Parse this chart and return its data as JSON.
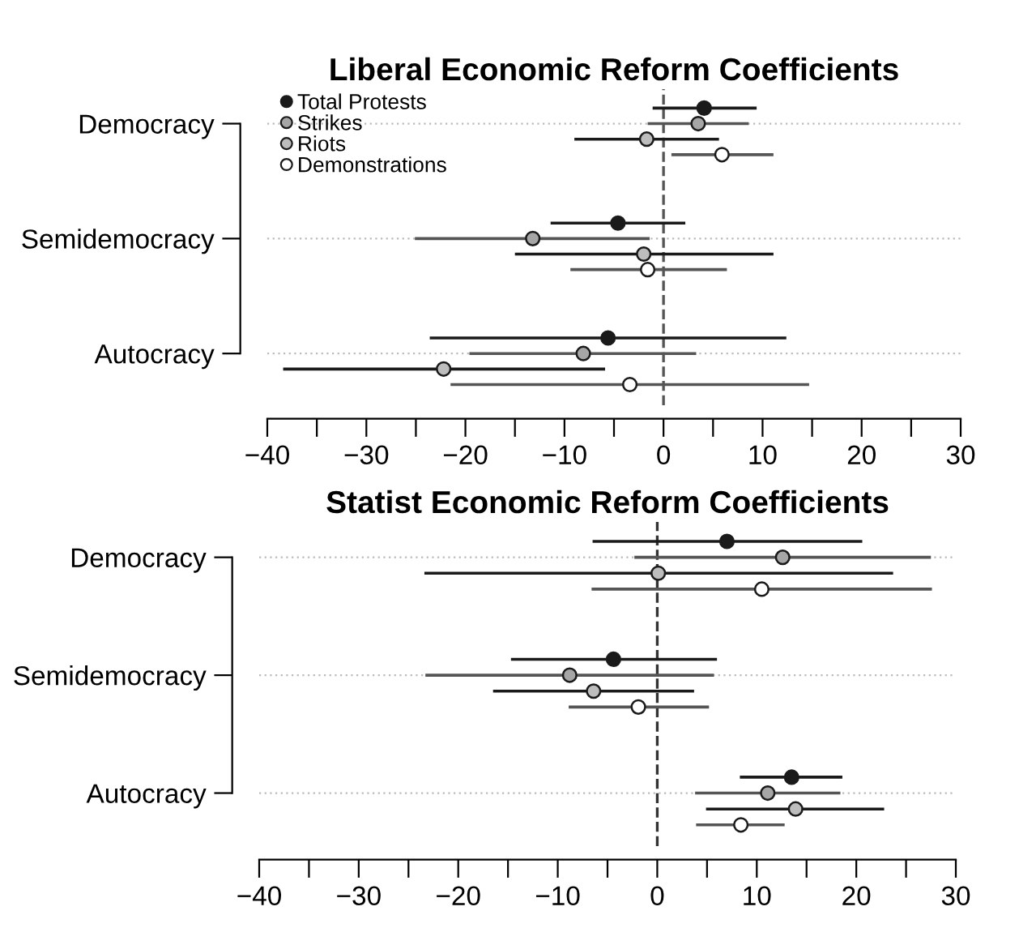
{
  "chart_data": [
    {
      "type": "scatter",
      "orientation": "horizontal",
      "title": "Liberal Economic Reform Coefficients",
      "categories": [
        "Democracy",
        "Semidemocracy",
        "Autocracy"
      ],
      "xlim": [
        -40,
        30
      ],
      "xticks": [
        {
          "value": -40,
          "label": "−40"
        },
        {
          "value": -35,
          "label": null
        },
        {
          "value": -30,
          "label": "−30"
        },
        {
          "value": -25,
          "label": null
        },
        {
          "value": -20,
          "label": "−20"
        },
        {
          "value": -15,
          "label": null
        },
        {
          "value": -10,
          "label": "−10"
        },
        {
          "value": -5,
          "label": null
        },
        0,
        {
          "value": 5,
          "label": null
        },
        10,
        {
          "value": 15,
          "label": null
        },
        20,
        {
          "value": 25,
          "label": null
        },
        30
      ],
      "grid": "y",
      "legend": "top left",
      "marker": "circle",
      "ref_lines": [
        {
          "axis": "x",
          "value": 0,
          "line_style": "dashed",
          "color": "#555555"
        }
      ],
      "series": [
        {
          "name": "Total Protests",
          "color": "#1a1a1a",
          "values": [
            4.1,
            -4.6,
            -5.6
          ],
          "errors": [
            [
              -1.1,
              9.4
            ],
            [
              -11.4,
              2.2
            ],
            [
              -23.6,
              12.4
            ]
          ]
        },
        {
          "name": "Strikes",
          "color": "#a6a6a6",
          "values": [
            3.5,
            -13.2,
            -8.1
          ],
          "errors": [
            [
              -1.6,
              8.6
            ],
            [
              -25.1,
              -1.4
            ],
            [
              -19.6,
              3.3
            ]
          ]
        },
        {
          "name": "Riots",
          "color": "#bdbdbd",
          "values": [
            -1.7,
            -2.0,
            -22.2
          ],
          "errors": [
            [
              -9.0,
              5.6
            ],
            [
              -15.0,
              11.1
            ],
            [
              -38.4,
              -5.9
            ]
          ]
        },
        {
          "name": "Demonstrations",
          "color": "#ffffff",
          "values": [
            5.9,
            -1.6,
            -3.4
          ],
          "errors": [
            [
              0.8,
              11.1
            ],
            [
              -9.4,
              6.4
            ],
            [
              -21.5,
              14.7
            ]
          ]
        }
      ]
    },
    {
      "type": "scatter",
      "orientation": "horizontal",
      "title": "Statist Economic Reform Coefficients",
      "categories": [
        "Democracy",
        "Semidemocracy",
        "Autocracy"
      ],
      "xlim": [
        -40,
        30
      ],
      "xticks": [
        {
          "value": -40,
          "label": "−40"
        },
        {
          "value": -35,
          "label": null
        },
        {
          "value": -30,
          "label": "−30"
        },
        {
          "value": -25,
          "label": null
        },
        {
          "value": -20,
          "label": "−20"
        },
        {
          "value": -15,
          "label": null
        },
        {
          "value": -10,
          "label": "−10"
        },
        {
          "value": -5,
          "label": null
        },
        0,
        {
          "value": 5,
          "label": null
        },
        10,
        {
          "value": 15,
          "label": null
        },
        20,
        {
          "value": 25,
          "label": null
        },
        30
      ],
      "grid": "y",
      "marker": "circle",
      "ref_lines": [
        {
          "axis": "x",
          "value": 0,
          "line_style": "dashed",
          "color": "#333333"
        }
      ],
      "series": [
        {
          "color": "#1a1a1a",
          "values": [
            7.0,
            -4.4,
            13.5
          ],
          "errors": [
            [
              -6.5,
              20.6
            ],
            [
              -14.7,
              6.0
            ],
            [
              8.3,
              18.6
            ]
          ]
        },
        {
          "color": "#a6a6a6",
          "values": [
            12.6,
            -8.8,
            11.1
          ],
          "errors": [
            [
              -2.3,
              27.5
            ],
            [
              -23.3,
              5.7
            ],
            [
              3.8,
              18.4
            ]
          ]
        },
        {
          "color": "#bdbdbd",
          "values": [
            0.1,
            -6.4,
            13.9
          ],
          "errors": [
            [
              -23.4,
              23.7
            ],
            [
              -16.5,
              3.7
            ],
            [
              4.9,
              22.8
            ]
          ]
        },
        {
          "color": "#ffffff",
          "values": [
            10.5,
            -1.9,
            8.4
          ],
          "errors": [
            [
              -6.6,
              27.6
            ],
            [
              -8.9,
              5.2
            ],
            [
              3.9,
              12.8
            ]
          ]
        }
      ]
    }
  ]
}
